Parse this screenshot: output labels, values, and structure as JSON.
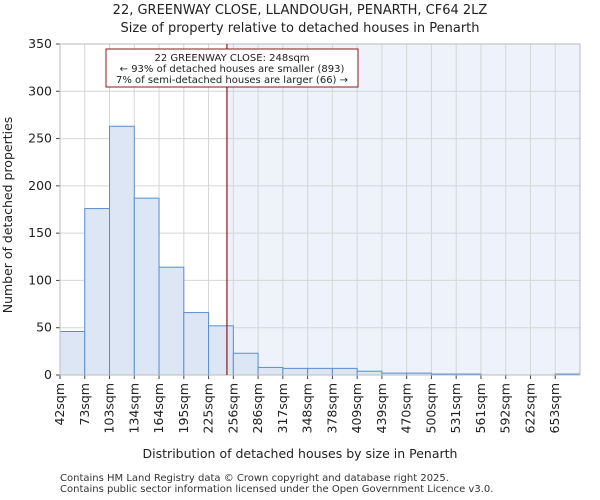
{
  "chart_data": {
    "type": "bar",
    "title": "22, GREENWAY CLOSE, LLANDOUGH, PENARTH, CF64 2LZ",
    "subtitle": "Size of property relative to detached houses in Penarth",
    "xlabel": "Distribution of detached houses by size in Penarth",
    "ylabel": "Number of detached properties",
    "categories": [
      "42sqm",
      "73sqm",
      "103sqm",
      "134sqm",
      "164sqm",
      "195sqm",
      "225sqm",
      "256sqm",
      "286sqm",
      "317sqm",
      "348sqm",
      "378sqm",
      "409sqm",
      "439sqm",
      "470sqm",
      "500sqm",
      "531sqm",
      "561sqm",
      "592sqm",
      "622sqm",
      "653sqm"
    ],
    "values": [
      46,
      176,
      263,
      187,
      114,
      66,
      52,
      23,
      8,
      7,
      7,
      7,
      4,
      2,
      2,
      1,
      1,
      0,
      0,
      0,
      1
    ],
    "ylim": [
      0,
      350
    ],
    "yticks": [
      0,
      50,
      100,
      150,
      200,
      250,
      300,
      350
    ],
    "grid": true,
    "bar_color": "#dce6f4",
    "bar_edge_color": "#5b8fd0",
    "highlight_region_color": "#eef2fb",
    "marker": {
      "value_sqm": 248,
      "color": "#8b1a1a",
      "lines": [
        "22 GREENWAY CLOSE: 248sqm",
        "← 93% of detached houses are smaller (893)",
        "7% of semi-detached houses are larger (66) →"
      ]
    }
  },
  "footer": {
    "line1": "Contains HM Land Registry data © Crown copyright and database right 2025.",
    "line2": "Contains public sector information licensed under the Open Government Licence v3.0."
  }
}
